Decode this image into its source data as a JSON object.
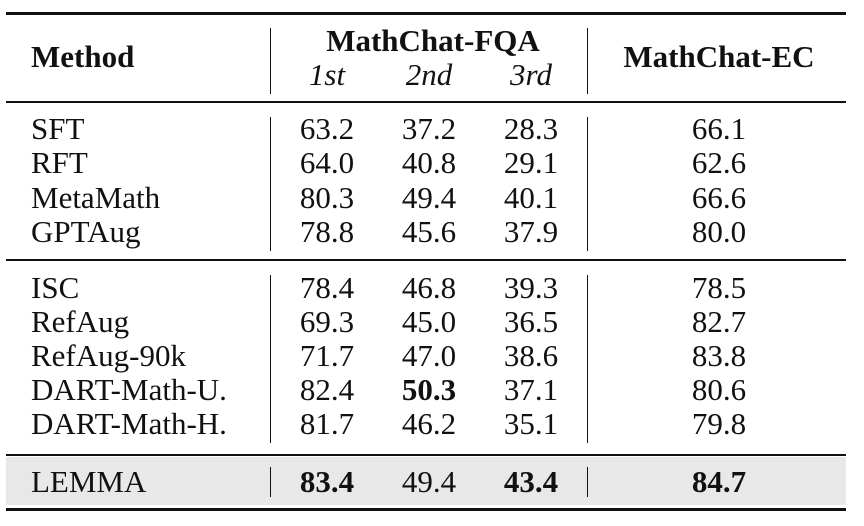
{
  "header": {
    "method": "Method",
    "group_fqa": "MathChat-FQA",
    "sub_1st": "1st",
    "sub_2nd": "2nd",
    "sub_3rd": "3rd",
    "group_ec": "MathChat-EC"
  },
  "sections": [
    {
      "rows": [
        {
          "method": "SFT",
          "first": "63.2",
          "second": "37.2",
          "third": "28.3",
          "ec": "66.1"
        },
        {
          "method": "RFT",
          "first": "64.0",
          "second": "40.8",
          "third": "29.1",
          "ec": "62.6"
        },
        {
          "method": "MetaMath",
          "first": "80.3",
          "second": "49.4",
          "third": "40.1",
          "ec": "66.6"
        },
        {
          "method": "GPTAug",
          "first": "78.8",
          "second": "45.6",
          "third": "37.9",
          "ec": "80.0"
        }
      ]
    },
    {
      "rows": [
        {
          "method": "ISC",
          "first": "78.4",
          "second": "46.8",
          "third": "39.3",
          "ec": "78.5"
        },
        {
          "method": "RefAug",
          "first": "69.3",
          "second": "45.0",
          "third": "36.5",
          "ec": "82.7"
        },
        {
          "method": "RefAug-90k",
          "first": "71.7",
          "second": "47.0",
          "third": "38.6",
          "ec": "83.8"
        },
        {
          "method": "DART-Math-U.",
          "first": "82.4",
          "second": "50.3",
          "third": "37.1",
          "ec": "80.6",
          "bold": [
            "second"
          ]
        },
        {
          "method": "DART-Math-H.",
          "first": "81.7",
          "second": "46.2",
          "third": "35.1",
          "ec": "79.8"
        }
      ]
    },
    {
      "rows": [
        {
          "method": "LEMMA",
          "first": "83.4",
          "second": "49.4",
          "third": "43.4",
          "ec": "84.7",
          "bold": [
            "first",
            "third",
            "ec"
          ],
          "highlight": true
        }
      ]
    }
  ],
  "colors": {
    "rule": "#111111",
    "highlight": "#e8e8e8"
  }
}
